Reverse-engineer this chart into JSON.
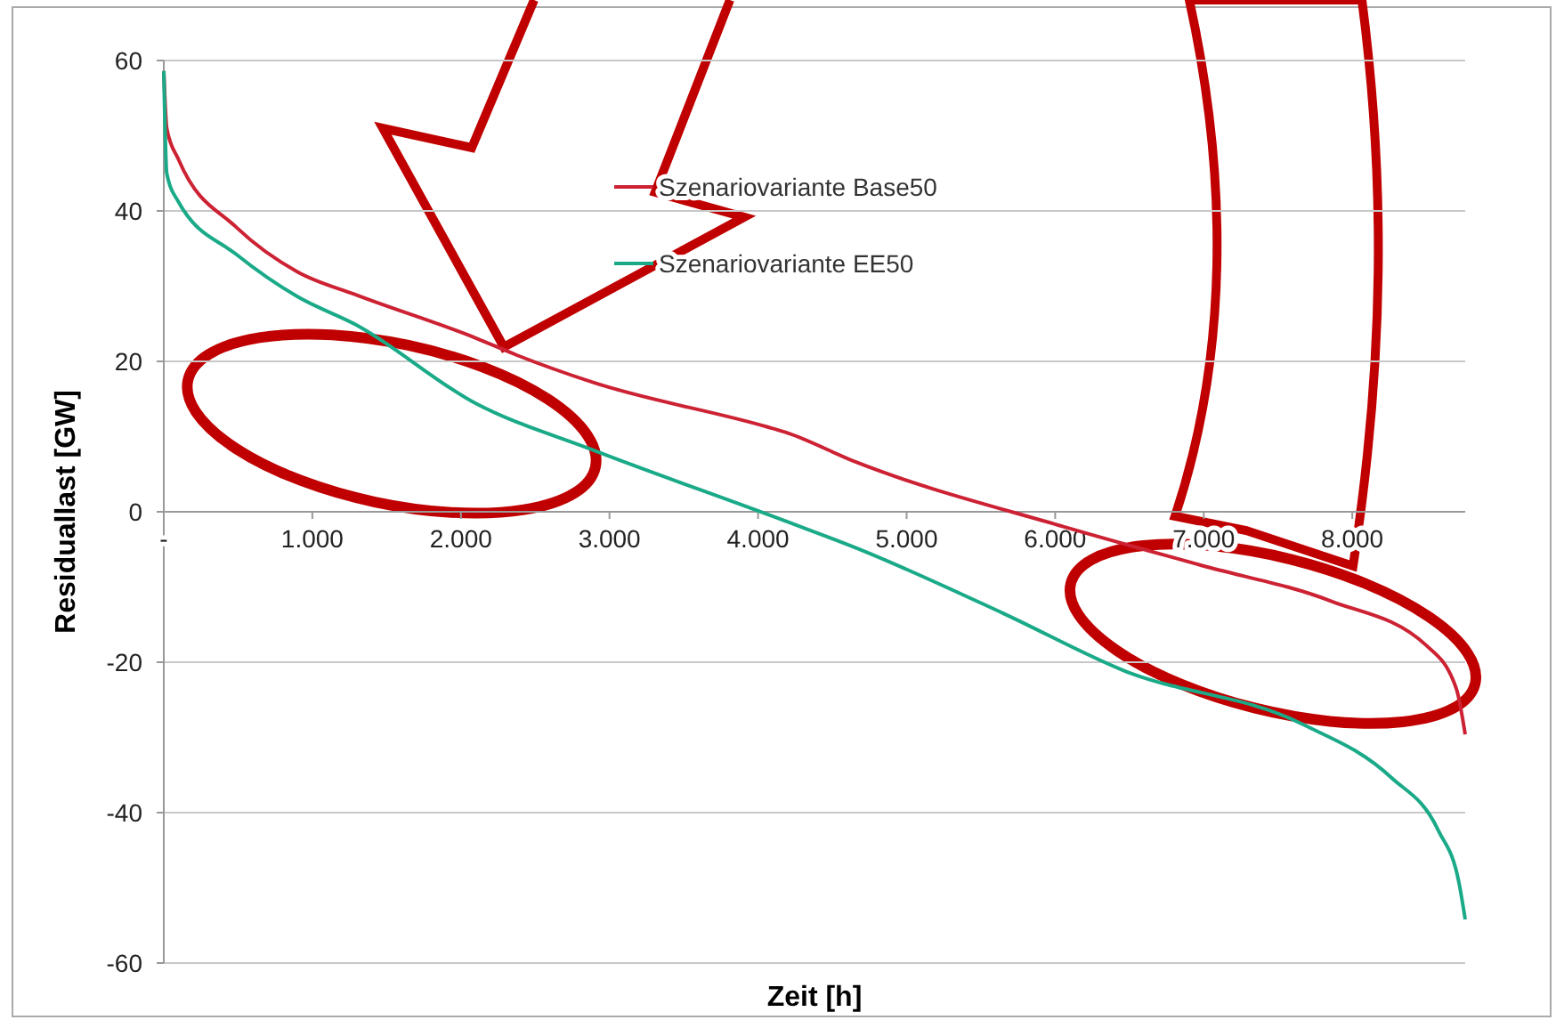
{
  "chart_data": {
    "type": "line",
    "xlabel": "Zeit [h]",
    "ylabel": "Residuallast [GW]",
    "xlim": [
      0,
      8760
    ],
    "ylim": [
      -60,
      60
    ],
    "xticks": [
      {
        "value": 0,
        "label": "-"
      },
      {
        "value": 1000,
        "label": "1.000"
      },
      {
        "value": 2000,
        "label": "2.000"
      },
      {
        "value": 3000,
        "label": "3.000"
      },
      {
        "value": 4000,
        "label": "4.000"
      },
      {
        "value": 5000,
        "label": "5.000"
      },
      {
        "value": 6000,
        "label": "6.000"
      },
      {
        "value": 7000,
        "label": "7.000"
      },
      {
        "value": 8000,
        "label": "8.000"
      }
    ],
    "yticks": [
      -60,
      -40,
      -20,
      0,
      20,
      40,
      60
    ],
    "grid": "y",
    "legend": "top",
    "marker": "none",
    "line_style": "solid",
    "series": [
      {
        "name": "Szenariovariante Base50",
        "color": "#cc2233",
        "x": [
          0,
          20,
          100,
          490,
          900,
          1300,
          2100,
          2380,
          2890,
          4060,
          4180,
          4660,
          6060,
          6980,
          7860,
          8500,
          8700,
          8760
        ],
        "values": [
          58.6,
          51,
          46.8,
          37.8,
          31.9,
          28.8,
          23.1,
          20.8,
          17.2,
          11.3,
          10.6,
          6.6,
          -2.0,
          -7.1,
          -11.9,
          -17.8,
          -23.5,
          -29.6
        ]
      },
      {
        "name": "Szenariovariante EE50",
        "color": "#1aaa88",
        "x": [
          0,
          20,
          96,
          490,
          900,
          1300,
          2100,
          2890,
          4180,
          4660,
          5650,
          6460,
          7660,
          8260,
          8580,
          8720,
          8760
        ],
        "values": [
          58.6,
          45,
          41.3,
          34.2,
          28.6,
          24.8,
          14.4,
          8.2,
          -1.2,
          -4.8,
          -13.5,
          -21.1,
          -28.2,
          -35.3,
          -42.4,
          -49.5,
          -54.2
        ]
      }
    ]
  }
}
